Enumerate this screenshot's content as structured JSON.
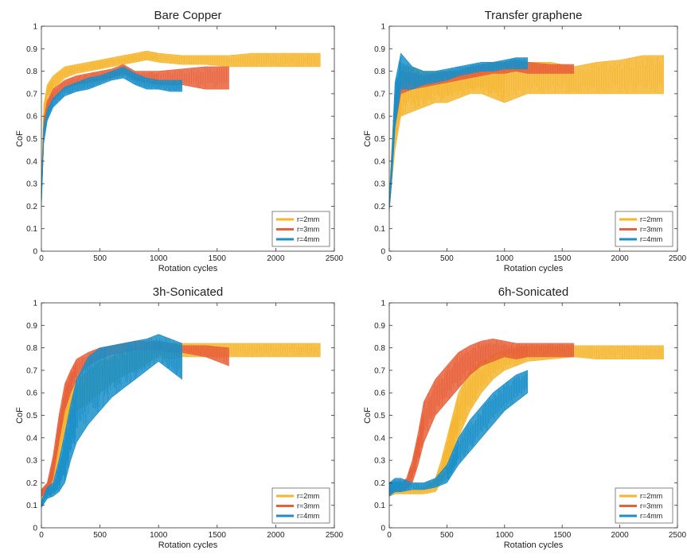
{
  "colors": {
    "r2": "#f5b62f",
    "r3": "#e8603a",
    "r4": "#1a8fc9"
  },
  "charts": [
    {
      "title": "Bare Copper",
      "xlabel": "Rotation cycles",
      "ylabel": "CoF",
      "xticks": [
        "0",
        "500",
        "1000",
        "1500",
        "2000",
        "2500"
      ],
      "yticks": [
        "0",
        "0.1",
        "0.2",
        "0.3",
        "0.4",
        "0.5",
        "0.6",
        "0.7",
        "0.8",
        "0.9",
        "1"
      ],
      "legend": [
        "r=2mm",
        "r=3mm",
        "r=4mm"
      ]
    },
    {
      "title": "Transfer graphene",
      "xlabel": "Rotation cycles",
      "ylabel": "CoF",
      "xticks": [
        "0",
        "500",
        "1000",
        "1500",
        "2000",
        "2500"
      ],
      "yticks": [
        "0",
        "0.1",
        "0.2",
        "0.3",
        "0.4",
        "0.5",
        "0.6",
        "0.7",
        "0.8",
        "0.9",
        "1"
      ],
      "legend": [
        "r=2mm",
        "r=3mm",
        "r=4mm"
      ]
    },
    {
      "title": "3h-Sonicated",
      "xlabel": "Rotation cycles",
      "ylabel": "CoF",
      "xticks": [
        "0",
        "500",
        "1000",
        "1500",
        "2000",
        "2500"
      ],
      "yticks": [
        "0",
        "0.1",
        "0.2",
        "0.3",
        "0.4",
        "0.5",
        "0.6",
        "0.7",
        "0.8",
        "0.9",
        "1"
      ],
      "legend": [
        "r=2mm",
        "r=3mm",
        "r=4mm"
      ]
    },
    {
      "title": "6h-Sonicated",
      "xlabel": "Rotation cycles",
      "ylabel": "CoF",
      "xticks": [
        "0",
        "500",
        "1000",
        "1500",
        "2000",
        "2500"
      ],
      "yticks": [
        "0",
        "0.1",
        "0.2",
        "0.3",
        "0.4",
        "0.5",
        "0.6",
        "0.7",
        "0.8",
        "0.9",
        "1"
      ],
      "legend": [
        "r=2mm",
        "r=3mm",
        "r=4mm"
      ]
    }
  ],
  "chart_data": [
    {
      "type": "area",
      "title": "Bare Copper",
      "xlabel": "Rotation cycles",
      "ylabel": "CoF",
      "xlim": [
        0,
        2500
      ],
      "ylim": [
        0,
        1
      ],
      "legend_position": "bottom-right",
      "series": [
        {
          "name": "r=2mm",
          "color": "#f5b62f",
          "x": [
            0,
            20,
            50,
            100,
            200,
            300,
            400,
            500,
            600,
            700,
            800,
            900,
            1000,
            1200,
            1400,
            1600,
            1800,
            2000,
            2200,
            2380
          ],
          "low": [
            0.25,
            0.55,
            0.68,
            0.72,
            0.77,
            0.79,
            0.8,
            0.81,
            0.82,
            0.83,
            0.84,
            0.85,
            0.84,
            0.83,
            0.83,
            0.82,
            0.82,
            0.82,
            0.82,
            0.82
          ],
          "high": [
            0.3,
            0.65,
            0.74,
            0.78,
            0.82,
            0.83,
            0.84,
            0.85,
            0.86,
            0.87,
            0.88,
            0.89,
            0.88,
            0.87,
            0.87,
            0.87,
            0.88,
            0.88,
            0.88,
            0.88
          ]
        },
        {
          "name": "r=3mm",
          "color": "#e8603a",
          "x": [
            0,
            20,
            50,
            100,
            200,
            300,
            400,
            500,
            600,
            700,
            800,
            900,
            1000,
            1200,
            1400,
            1600
          ],
          "low": [
            0.25,
            0.52,
            0.62,
            0.67,
            0.72,
            0.74,
            0.75,
            0.76,
            0.77,
            0.79,
            0.76,
            0.75,
            0.74,
            0.74,
            0.72,
            0.72
          ],
          "high": [
            0.28,
            0.58,
            0.67,
            0.72,
            0.76,
            0.78,
            0.79,
            0.8,
            0.81,
            0.83,
            0.8,
            0.8,
            0.8,
            0.81,
            0.82,
            0.82
          ]
        },
        {
          "name": "r=4mm",
          "color": "#1a8fc9",
          "x": [
            0,
            20,
            50,
            100,
            200,
            300,
            400,
            500,
            600,
            700,
            800,
            900,
            1000,
            1100,
            1200
          ],
          "low": [
            0.2,
            0.48,
            0.58,
            0.64,
            0.69,
            0.71,
            0.72,
            0.74,
            0.76,
            0.77,
            0.74,
            0.72,
            0.72,
            0.71,
            0.71
          ],
          "high": [
            0.26,
            0.55,
            0.63,
            0.68,
            0.73,
            0.75,
            0.77,
            0.78,
            0.8,
            0.82,
            0.79,
            0.77,
            0.76,
            0.76,
            0.76
          ]
        }
      ]
    },
    {
      "type": "area",
      "title": "Transfer graphene",
      "xlabel": "Rotation cycles",
      "ylabel": "CoF",
      "xlim": [
        0,
        2500
      ],
      "ylim": [
        0,
        1
      ],
      "legend_position": "bottom-right",
      "series": [
        {
          "name": "r=2mm",
          "color": "#f5b62f",
          "x": [
            0,
            20,
            50,
            100,
            200,
            300,
            400,
            500,
            600,
            700,
            800,
            900,
            1000,
            1200,
            1400,
            1600,
            1800,
            2000,
            2200,
            2380
          ],
          "low": [
            0.18,
            0.3,
            0.45,
            0.6,
            0.62,
            0.64,
            0.66,
            0.66,
            0.68,
            0.7,
            0.7,
            0.68,
            0.66,
            0.7,
            0.7,
            0.7,
            0.7,
            0.7,
            0.7,
            0.7
          ],
          "high": [
            0.25,
            0.45,
            0.7,
            0.82,
            0.82,
            0.8,
            0.8,
            0.8,
            0.8,
            0.8,
            0.82,
            0.82,
            0.82,
            0.84,
            0.84,
            0.82,
            0.84,
            0.85,
            0.87,
            0.87
          ]
        },
        {
          "name": "r=3mm",
          "color": "#e8603a",
          "x": [
            0,
            20,
            50,
            100,
            200,
            300,
            400,
            500,
            600,
            700,
            800,
            900,
            1000,
            1100,
            1200,
            1400,
            1600
          ],
          "low": [
            0.18,
            0.3,
            0.55,
            0.7,
            0.72,
            0.73,
            0.74,
            0.75,
            0.76,
            0.77,
            0.78,
            0.79,
            0.79,
            0.8,
            0.79,
            0.79,
            0.79
          ],
          "high": [
            0.22,
            0.4,
            0.7,
            0.8,
            0.79,
            0.78,
            0.79,
            0.8,
            0.8,
            0.82,
            0.83,
            0.84,
            0.84,
            0.85,
            0.84,
            0.83,
            0.83
          ]
        },
        {
          "name": "r=4mm",
          "color": "#1a8fc9",
          "x": [
            0,
            20,
            50,
            100,
            200,
            300,
            400,
            500,
            600,
            700,
            800,
            900,
            1000,
            1100,
            1200
          ],
          "low": [
            0.18,
            0.3,
            0.55,
            0.72,
            0.72,
            0.74,
            0.75,
            0.76,
            0.78,
            0.79,
            0.8,
            0.8,
            0.81,
            0.81,
            0.81
          ],
          "high": [
            0.22,
            0.42,
            0.75,
            0.88,
            0.82,
            0.8,
            0.8,
            0.81,
            0.82,
            0.83,
            0.84,
            0.84,
            0.85,
            0.86,
            0.86
          ]
        }
      ]
    },
    {
      "type": "area",
      "title": "3h-Sonicated",
      "xlabel": "Rotation cycles",
      "ylabel": "CoF",
      "xlim": [
        0,
        2500
      ],
      "ylim": [
        0,
        1
      ],
      "legend_position": "bottom-right",
      "series": [
        {
          "name": "r=2mm",
          "color": "#f5b62f",
          "x": [
            0,
            50,
            100,
            150,
            200,
            250,
            300,
            400,
            500,
            600,
            700,
            800,
            900,
            1000,
            1100,
            1200,
            1400,
            1600,
            1800,
            2000,
            2200,
            2380
          ],
          "low": [
            0.13,
            0.15,
            0.2,
            0.3,
            0.42,
            0.48,
            0.52,
            0.56,
            0.6,
            0.64,
            0.68,
            0.7,
            0.73,
            0.76,
            0.75,
            0.76,
            0.76,
            0.76,
            0.76,
            0.76,
            0.76,
            0.76
          ],
          "high": [
            0.17,
            0.2,
            0.28,
            0.42,
            0.55,
            0.62,
            0.66,
            0.7,
            0.74,
            0.76,
            0.78,
            0.8,
            0.81,
            0.82,
            0.82,
            0.82,
            0.82,
            0.82,
            0.82,
            0.82,
            0.82,
            0.82
          ]
        },
        {
          "name": "r=3mm",
          "color": "#e8603a",
          "x": [
            0,
            50,
            100,
            150,
            200,
            250,
            300,
            400,
            500,
            600,
            700,
            800,
            900,
            1000,
            1100,
            1200,
            1400,
            1600
          ],
          "low": [
            0.14,
            0.15,
            0.22,
            0.38,
            0.52,
            0.6,
            0.66,
            0.72,
            0.75,
            0.77,
            0.78,
            0.79,
            0.79,
            0.79,
            0.78,
            0.78,
            0.76,
            0.72
          ],
          "high": [
            0.17,
            0.2,
            0.32,
            0.5,
            0.64,
            0.7,
            0.75,
            0.78,
            0.8,
            0.81,
            0.82,
            0.83,
            0.83,
            0.83,
            0.82,
            0.81,
            0.81,
            0.8
          ]
        },
        {
          "name": "r=4mm",
          "color": "#1a8fc9",
          "x": [
            0,
            50,
            100,
            150,
            200,
            250,
            300,
            400,
            500,
            600,
            700,
            800,
            900,
            1000,
            1100,
            1200
          ],
          "low": [
            0.09,
            0.13,
            0.14,
            0.16,
            0.2,
            0.3,
            0.38,
            0.46,
            0.52,
            0.58,
            0.62,
            0.66,
            0.7,
            0.74,
            0.7,
            0.66
          ],
          "high": [
            0.12,
            0.18,
            0.2,
            0.3,
            0.42,
            0.55,
            0.66,
            0.76,
            0.8,
            0.81,
            0.82,
            0.83,
            0.84,
            0.86,
            0.84,
            0.82
          ]
        }
      ]
    },
    {
      "type": "area",
      "title": "6h-Sonicated",
      "xlabel": "Rotation cycles",
      "ylabel": "CoF",
      "xlim": [
        0,
        2500
      ],
      "ylim": [
        0,
        1
      ],
      "legend_position": "bottom-right",
      "series": [
        {
          "name": "r=2mm",
          "color": "#f5b62f",
          "x": [
            0,
            50,
            100,
            200,
            300,
            400,
            450,
            500,
            550,
            600,
            700,
            800,
            900,
            1000,
            1100,
            1200,
            1400,
            1600,
            1800,
            2000,
            2200,
            2380
          ],
          "low": [
            0.14,
            0.15,
            0.15,
            0.15,
            0.15,
            0.16,
            0.2,
            0.25,
            0.32,
            0.4,
            0.52,
            0.6,
            0.66,
            0.7,
            0.72,
            0.74,
            0.75,
            0.76,
            0.75,
            0.75,
            0.75,
            0.75
          ],
          "high": [
            0.18,
            0.17,
            0.17,
            0.17,
            0.18,
            0.22,
            0.3,
            0.4,
            0.5,
            0.6,
            0.7,
            0.74,
            0.77,
            0.79,
            0.8,
            0.81,
            0.81,
            0.81,
            0.81,
            0.81,
            0.81,
            0.81
          ]
        },
        {
          "name": "r=3mm",
          "color": "#e8603a",
          "x": [
            0,
            50,
            100,
            150,
            200,
            250,
            300,
            400,
            500,
            600,
            700,
            800,
            900,
            1000,
            1100,
            1200,
            1400,
            1600
          ],
          "low": [
            0.15,
            0.16,
            0.16,
            0.17,
            0.2,
            0.28,
            0.38,
            0.5,
            0.56,
            0.62,
            0.68,
            0.72,
            0.74,
            0.76,
            0.75,
            0.76,
            0.76,
            0.76
          ],
          "high": [
            0.2,
            0.2,
            0.2,
            0.22,
            0.3,
            0.42,
            0.56,
            0.66,
            0.72,
            0.78,
            0.81,
            0.83,
            0.84,
            0.83,
            0.82,
            0.82,
            0.82,
            0.82
          ]
        },
        {
          "name": "r=4mm",
          "color": "#1a8fc9",
          "x": [
            0,
            50,
            100,
            200,
            300,
            400,
            500,
            550,
            600,
            700,
            800,
            900,
            1000,
            1100,
            1200
          ],
          "low": [
            0.14,
            0.16,
            0.16,
            0.17,
            0.17,
            0.18,
            0.2,
            0.24,
            0.28,
            0.34,
            0.4,
            0.46,
            0.52,
            0.56,
            0.6
          ],
          "high": [
            0.2,
            0.22,
            0.22,
            0.2,
            0.2,
            0.22,
            0.28,
            0.34,
            0.4,
            0.48,
            0.54,
            0.6,
            0.64,
            0.68,
            0.7
          ]
        }
      ]
    }
  ]
}
